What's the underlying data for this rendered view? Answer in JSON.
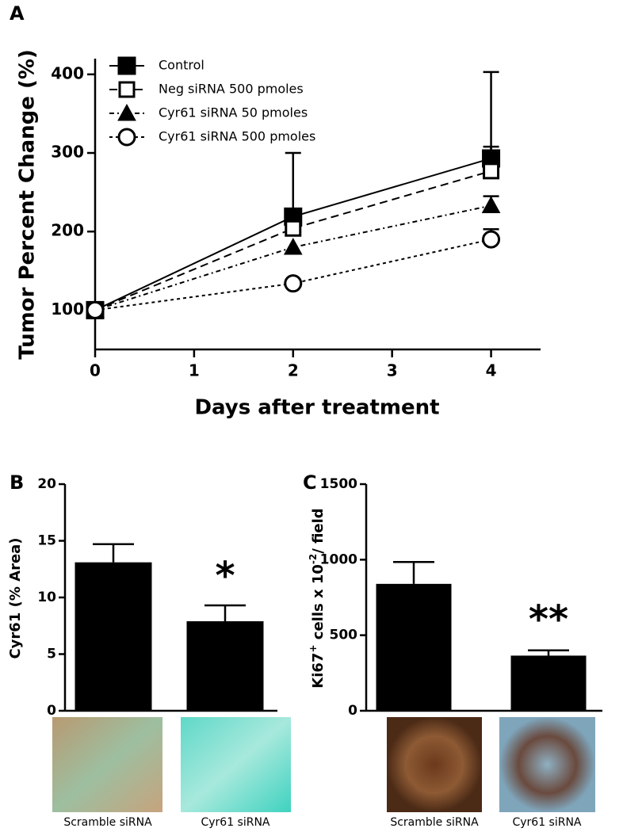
{
  "chart_data": [
    {
      "type": "line",
      "panel_label": "A",
      "x_label": "Days after treatment",
      "y_label": "Tumor Percent Change (%)",
      "x": [
        0,
        2,
        4
      ],
      "xlim": [
        0,
        4.5
      ],
      "xticks": [
        0,
        1,
        2,
        3,
        4
      ],
      "ylim": [
        50,
        420
      ],
      "yticks": [
        100,
        200,
        300,
        400
      ],
      "legend": "upper left",
      "series": [
        {
          "name": "Control",
          "color": "#000000",
          "linestyle": "solid",
          "marker": "square",
          "values": [
            100,
            219,
            293
          ],
          "errors": [
            null,
            81,
            110
          ]
        },
        {
          "name": "Neg siRNA 500 pmoles",
          "color": "#000000",
          "linestyle": "dashed",
          "marker": "open-square",
          "values": [
            100,
            204,
            277
          ],
          "errors": [
            null,
            null,
            31
          ]
        },
        {
          "name": "Cyr61 siRNA 50 pmoles",
          "color": "#000000",
          "linestyle": "dashdot",
          "marker": "triangle",
          "values": [
            100,
            180,
            233
          ],
          "errors": [
            null,
            null,
            12
          ]
        },
        {
          "name": "Cyr61 siRNA 500 pmoles",
          "color": "#000000",
          "linestyle": "dotted",
          "marker": "open-circle",
          "values": [
            100,
            134,
            190
          ],
          "errors": [
            null,
            null,
            13
          ]
        }
      ]
    },
    {
      "type": "bar",
      "panel_label": "B",
      "y_label": "Cyr61 (% Area)",
      "categories": [
        "Scramble siRNA",
        "Cyr61 siRNA"
      ],
      "values": [
        13.1,
        7.9
      ],
      "errors": [
        1.6,
        1.4
      ],
      "color": "#000000",
      "ylim": [
        0,
        20
      ],
      "yticks": [
        0,
        5,
        10,
        15,
        20
      ],
      "annotation": "*"
    },
    {
      "type": "bar",
      "panel_label": "C",
      "y_label_parts": [
        "Ki67",
        "+",
        " cells x 10",
        "-2",
        "/ field"
      ],
      "categories": [
        "Scramble siRNA",
        "Cyr61 siRNA"
      ],
      "values": [
        840,
        365
      ],
      "errors": [
        145,
        35
      ],
      "color": "#000000",
      "ylim": [
        0,
        1500
      ],
      "yticks": [
        0,
        500,
        1000,
        1500
      ],
      "annotation": "**"
    }
  ]
}
